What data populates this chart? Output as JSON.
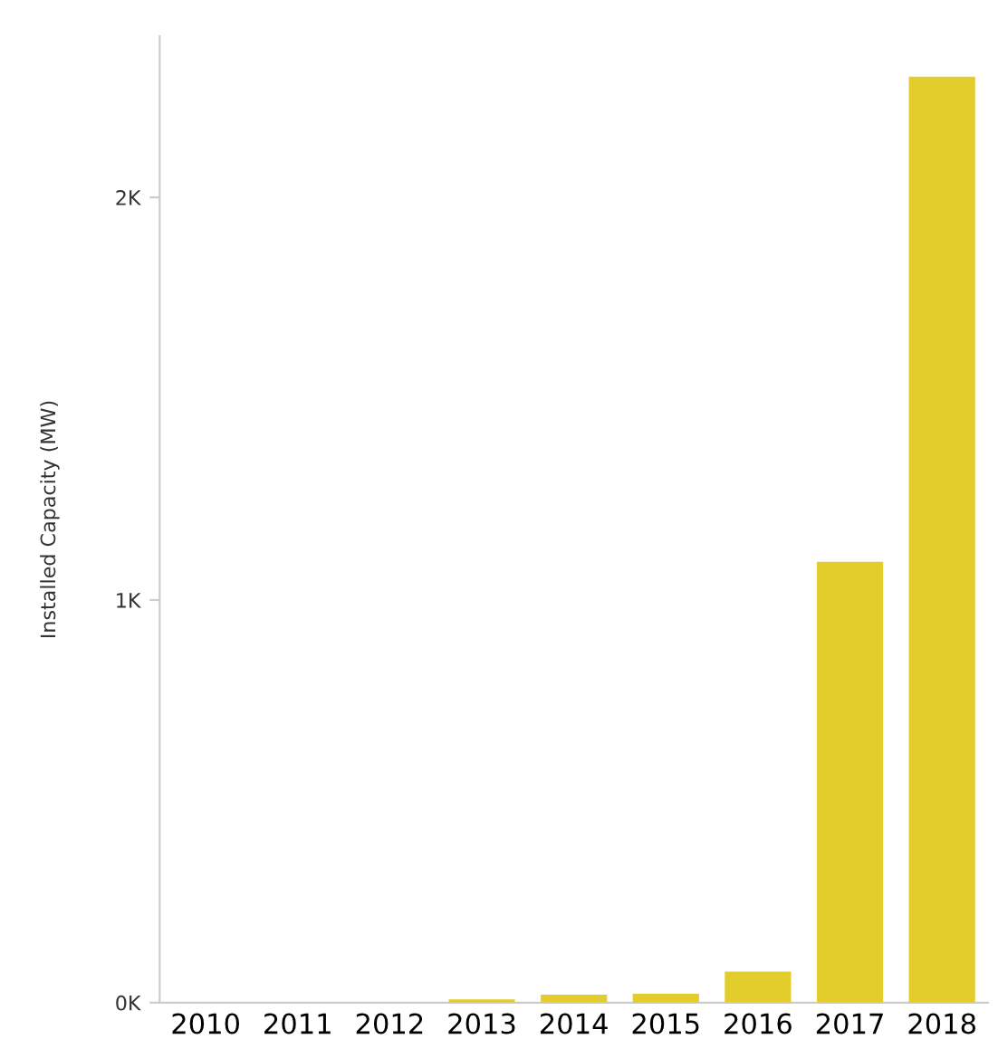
{
  "chart_data": {
    "type": "bar",
    "ylabel": "Installed Capacity (MW)",
    "categories": [
      "2010",
      "2011",
      "2012",
      "2013",
      "2014",
      "2015",
      "2016",
      "2017",
      "2018"
    ],
    "values": [
      0,
      0,
      0,
      8,
      20,
      22,
      77,
      1095,
      2300
    ],
    "color": "#e3cd2d",
    "ylim": [
      0,
      2400
    ],
    "yticks": [
      {
        "value": 0,
        "label": "0K"
      },
      {
        "value": 1000,
        "label": "1K"
      },
      {
        "value": 2000,
        "label": "2K"
      }
    ],
    "grid": false
  }
}
